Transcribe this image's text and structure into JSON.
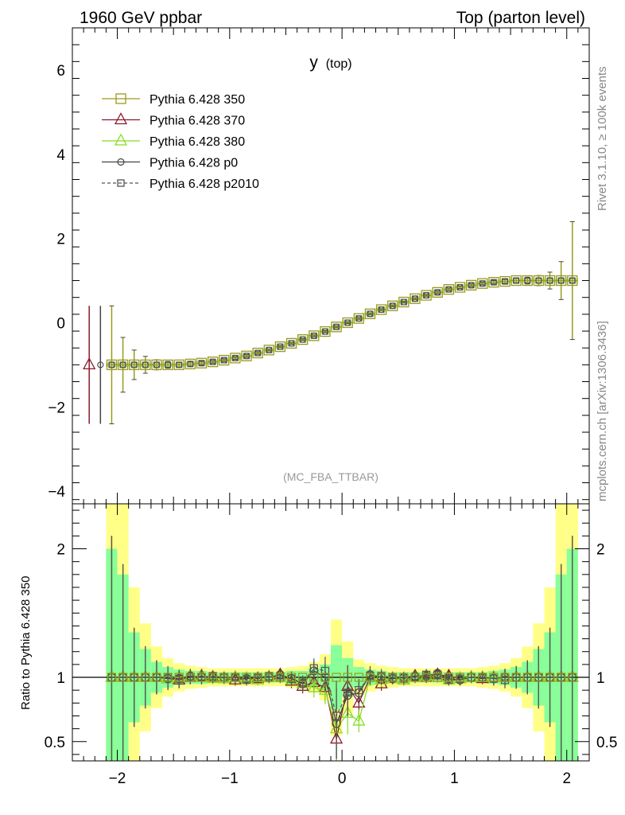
{
  "header": {
    "left": "1960 GeV ppbar",
    "right": "Top (parton level)"
  },
  "side": {
    "rivet": "Rivet 3.1.10, ≥ 100k events",
    "mcplots": "mcplots.cern.ch [arXiv:1306.3436]"
  },
  "colors": {
    "c350": "#9a9a1e",
    "c370": "#8b1a2b",
    "c380": "#88dd22",
    "cp0": "#444444",
    "cp2010": "#555555",
    "band_yellow": "#ffff88",
    "band_green": "#88ff99"
  },
  "chart_data": {
    "type": "line",
    "title": "y",
    "title_sub": "(top)",
    "watermark": "(MC_FBA_TTBAR)",
    "ylabel_ratio": "Ratio to Pythia 6.428 350",
    "xlim": [
      -2.4,
      2.2
    ],
    "ylim_main": [
      -4.3,
      7.0
    ],
    "ylim_ratio": [
      0.35,
      2.35
    ],
    "x_ticks": [
      -2,
      -1,
      0,
      1,
      2
    ],
    "x_tick_labels": [
      "−2",
      "−1",
      "0",
      "1",
      "2"
    ],
    "y_ticks_main": [
      -4,
      -2,
      0,
      2,
      4,
      6
    ],
    "y_tick_labels_main": [
      "−4",
      "−2",
      "0",
      "2",
      "4",
      "6"
    ],
    "y_ticks_ratio": [
      0.5,
      1,
      2
    ],
    "y_tick_labels_ratio": [
      "0.5",
      "1",
      "2"
    ],
    "legend": [
      {
        "label": "Pythia 6.428 350",
        "marker": "square",
        "color": "#9a9a1e",
        "dash": false
      },
      {
        "label": "Pythia 6.428 370",
        "marker": "triangle",
        "color": "#8b1a2b",
        "dash": false
      },
      {
        "label": "Pythia 6.428 380",
        "marker": "triangle",
        "color": "#88dd22",
        "dash": false
      },
      {
        "label": "Pythia 6.428 p0",
        "marker": "circle",
        "color": "#444444",
        "dash": false
      },
      {
        "label": "Pythia 6.428 p2010",
        "marker": "square",
        "color": "#555555",
        "dash": true
      }
    ],
    "x": [
      -2.05,
      -1.95,
      -1.85,
      -1.75,
      -1.65,
      -1.55,
      -1.45,
      -1.35,
      -1.25,
      -1.15,
      -1.05,
      -0.95,
      -0.85,
      -0.75,
      -0.65,
      -0.55,
      -0.45,
      -0.35,
      -0.25,
      -0.15,
      -0.05,
      0.05,
      0.15,
      0.25,
      0.35,
      0.45,
      0.55,
      0.65,
      0.75,
      0.85,
      0.95,
      1.05,
      1.15,
      1.25,
      1.35,
      1.45,
      1.55,
      1.65,
      1.75,
      1.85,
      1.95,
      2.05
    ],
    "main_values": [
      -1.0,
      -1.0,
      -1.0,
      -1.0,
      -1.0,
      -1.0,
      -1.0,
      -0.98,
      -0.96,
      -0.93,
      -0.89,
      -0.84,
      -0.79,
      -0.72,
      -0.65,
      -0.57,
      -0.49,
      -0.4,
      -0.31,
      -0.21,
      -0.1,
      0.0,
      0.1,
      0.21,
      0.31,
      0.4,
      0.49,
      0.57,
      0.65,
      0.72,
      0.79,
      0.84,
      0.89,
      0.93,
      0.96,
      0.98,
      1.0,
      1.0,
      1.0,
      1.0,
      1.0,
      1.0
    ],
    "main_err": [
      1.4,
      0.65,
      0.35,
      0.2,
      0.12,
      0.08,
      0.06,
      0.05,
      0.04,
      0.03,
      0.03,
      0.03,
      0.03,
      0.03,
      0.02,
      0.02,
      0.02,
      0.02,
      0.02,
      0.02,
      0.02,
      0.02,
      0.02,
      0.02,
      0.02,
      0.02,
      0.02,
      0.02,
      0.02,
      0.03,
      0.03,
      0.03,
      0.03,
      0.03,
      0.04,
      0.05,
      0.06,
      0.08,
      0.12,
      0.2,
      0.45,
      1.4
    ],
    "extra_points": [
      {
        "series": "Pythia 6.428 370",
        "x": -2.25,
        "y": -1.0,
        "err": 1.4
      },
      {
        "series": "Pythia 6.428 p0",
        "x": -2.15,
        "y": -1.0,
        "err": 1.4
      }
    ],
    "band_green": [
      1.0,
      0.8,
      0.35,
      0.22,
      0.12,
      0.08,
      0.06,
      0.05,
      0.05,
      0.04,
      0.04,
      0.04,
      0.04,
      0.04,
      0.04,
      0.04,
      0.05,
      0.05,
      0.07,
      0.1,
      0.25,
      0.15,
      0.08,
      0.06,
      0.05,
      0.04,
      0.04,
      0.04,
      0.04,
      0.04,
      0.04,
      0.04,
      0.04,
      0.04,
      0.05,
      0.06,
      0.08,
      0.12,
      0.22,
      0.35,
      0.8,
      1.0
    ],
    "band_yellow": [
      1.4,
      1.4,
      0.7,
      0.42,
      0.24,
      0.15,
      0.11,
      0.09,
      0.08,
      0.07,
      0.07,
      0.07,
      0.07,
      0.07,
      0.07,
      0.07,
      0.08,
      0.09,
      0.12,
      0.18,
      0.45,
      0.28,
      0.14,
      0.11,
      0.09,
      0.08,
      0.07,
      0.07,
      0.07,
      0.07,
      0.07,
      0.07,
      0.07,
      0.08,
      0.09,
      0.11,
      0.15,
      0.24,
      0.42,
      0.7,
      1.4,
      1.4
    ],
    "ratio_series": [
      {
        "name": "Pythia 6.428 370",
        "color": "#8b1a2b",
        "marker": "triangle",
        "values": [
          1.0,
          1.0,
          1.0,
          1.0,
          1.0,
          0.99,
          0.98,
          1.0,
          1.01,
          1.0,
          0.99,
          0.98,
          0.99,
          0.99,
          1.0,
          1.02,
          0.97,
          0.93,
          0.96,
          0.92,
          0.52,
          0.93,
          0.8,
          1.0,
          0.95,
          0.99,
          0.98,
          1.01,
          1.0,
          1.02,
          1.01,
          0.99,
          1.0,
          0.99,
          1.0,
          1.0,
          1.0,
          1.0,
          1.0,
          1.0,
          1.0,
          1.0
        ]
      },
      {
        "name": "Pythia 6.428 380",
        "color": "#88dd22",
        "marker": "triangle",
        "values": [
          1.0,
          1.0,
          1.0,
          1.0,
          1.0,
          0.99,
          1.0,
          1.01,
          1.0,
          0.99,
          0.99,
          1.0,
          0.99,
          0.98,
          1.0,
          1.0,
          0.98,
          0.95,
          0.92,
          0.9,
          0.6,
          0.72,
          0.66,
          1.0,
          0.98,
          0.99,
          0.98,
          1.0,
          1.01,
          1.0,
          0.98,
          0.99,
          1.0,
          1.0,
          1.0,
          1.0,
          1.0,
          1.0,
          1.0,
          1.0,
          1.0,
          1.0
        ]
      },
      {
        "name": "Pythia 6.428 p0",
        "color": "#444444",
        "marker": "circle",
        "values": [
          1.0,
          1.0,
          1.0,
          1.0,
          1.0,
          0.99,
          0.99,
          1.01,
          1.0,
          1.0,
          1.0,
          1.0,
          0.99,
          1.0,
          1.0,
          1.02,
          0.99,
          0.95,
          1.05,
          1.0,
          0.64,
          0.86,
          0.88,
          1.02,
          1.0,
          0.99,
          1.0,
          1.01,
          1.01,
          1.03,
          0.99,
          0.98,
          1.0,
          1.0,
          0.99,
          1.0,
          1.0,
          1.0,
          1.0,
          1.0,
          1.0,
          1.0
        ]
      },
      {
        "name": "Pythia 6.428 p2010",
        "color": "#555555",
        "marker": "square",
        "values": [
          1.0,
          1.0,
          1.0,
          1.0,
          1.0,
          1.0,
          0.99,
          1.0,
          1.0,
          1.01,
          1.0,
          1.0,
          0.98,
          1.0,
          1.01,
          1.0,
          0.99,
          0.96,
          1.07,
          1.05,
          0.7,
          0.88,
          0.9,
          1.01,
          1.01,
          1.0,
          0.99,
          1.0,
          1.02,
          1.02,
          0.98,
          0.99,
          1.0,
          1.0,
          0.99,
          0.98,
          1.0,
          1.0,
          1.0,
          1.0,
          1.0,
          1.0
        ]
      }
    ]
  }
}
